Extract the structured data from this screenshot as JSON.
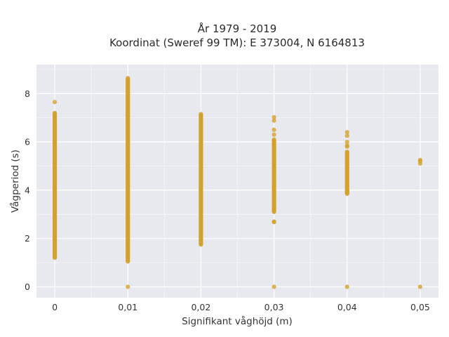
{
  "chart_data": {
    "type": "scatter",
    "title": "År 1979 - 2019",
    "subtitle": "Koordinat (Sweref 99 TM): E 373004, N 6164813",
    "xlabel": "Signifikant våghöjd (m)",
    "ylabel": "Vågperiod (s)",
    "xlim": [
      -0.0025,
      0.0525
    ],
    "ylim": [
      -0.45,
      9.2
    ],
    "x_ticks": [
      {
        "value": 0,
        "label": "0"
      },
      {
        "value": 0.01,
        "label": "0,01"
      },
      {
        "value": 0.02,
        "label": "0,02"
      },
      {
        "value": 0.03,
        "label": "0,03"
      },
      {
        "value": 0.04,
        "label": "0,04"
      },
      {
        "value": 0.05,
        "label": "0,05"
      }
    ],
    "y_ticks": [
      {
        "value": 0,
        "label": "0"
      },
      {
        "value": 2,
        "label": "2"
      },
      {
        "value": 4,
        "label": "4"
      },
      {
        "value": 6,
        "label": "6"
      },
      {
        "value": 8,
        "label": "8"
      }
    ],
    "grid": true,
    "marker_color": "#d4a12a",
    "background": "#e8e8ef",
    "series": [
      {
        "columns": [
          {
            "x": 0,
            "range": [
              1.2,
              7.2
            ],
            "extra": [
              7.65
            ]
          },
          {
            "x": 0.01,
            "range": [
              1.05,
              8.65
            ],
            "extra": [
              0
            ]
          },
          {
            "x": 0.02,
            "range": [
              1.75,
              7.15
            ],
            "extra": []
          },
          {
            "x": 0.03,
            "range": [
              3.1,
              6.1
            ],
            "extra": [
              2.7,
              2.68,
              6.3,
              6.5,
              6.88,
              7.02,
              0
            ]
          },
          {
            "x": 0.04,
            "range": [
              3.85,
              5.6
            ],
            "extra": [
              5.8,
              5.85,
              6.0,
              6.25,
              6.4,
              0
            ]
          },
          {
            "x": 0.05,
            "range": [],
            "extra": [
              5.1,
              5.2,
              5.25,
              0
            ]
          }
        ]
      }
    ]
  }
}
